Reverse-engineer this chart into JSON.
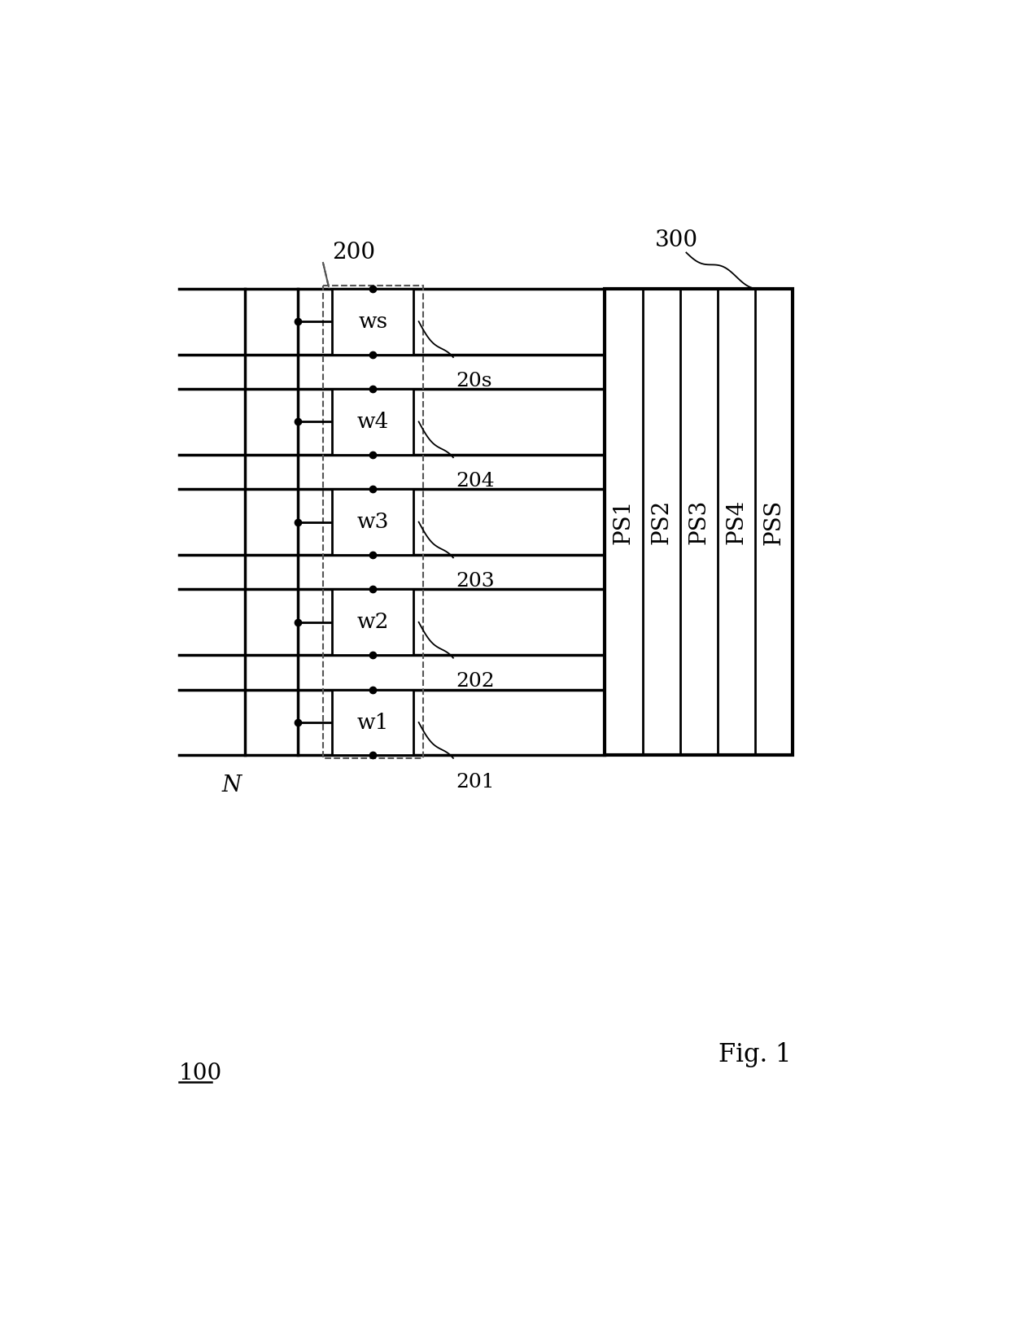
{
  "bg_color": "#ffffff",
  "line_color": "#000000",
  "dashed_color": "#555555",
  "fig_width": 12.4,
  "fig_height": 16.25,
  "blocks": [
    {
      "label": "ws",
      "ref": "20s"
    },
    {
      "label": "w4",
      "ref": "204"
    },
    {
      "label": "w3",
      "ref": "203"
    },
    {
      "label": "w2",
      "ref": "202"
    },
    {
      "label": "w1",
      "ref": "201"
    }
  ],
  "pss_section_labels": [
    "PSS",
    "PS4",
    "PS3",
    "PS2",
    "PS1"
  ],
  "font_size_block": 19,
  "font_size_label": 20,
  "font_size_ref": 18,
  "font_size_pss": 20,
  "font_size_fig": 22,
  "font_size_N": 20,
  "font_size_100": 20
}
